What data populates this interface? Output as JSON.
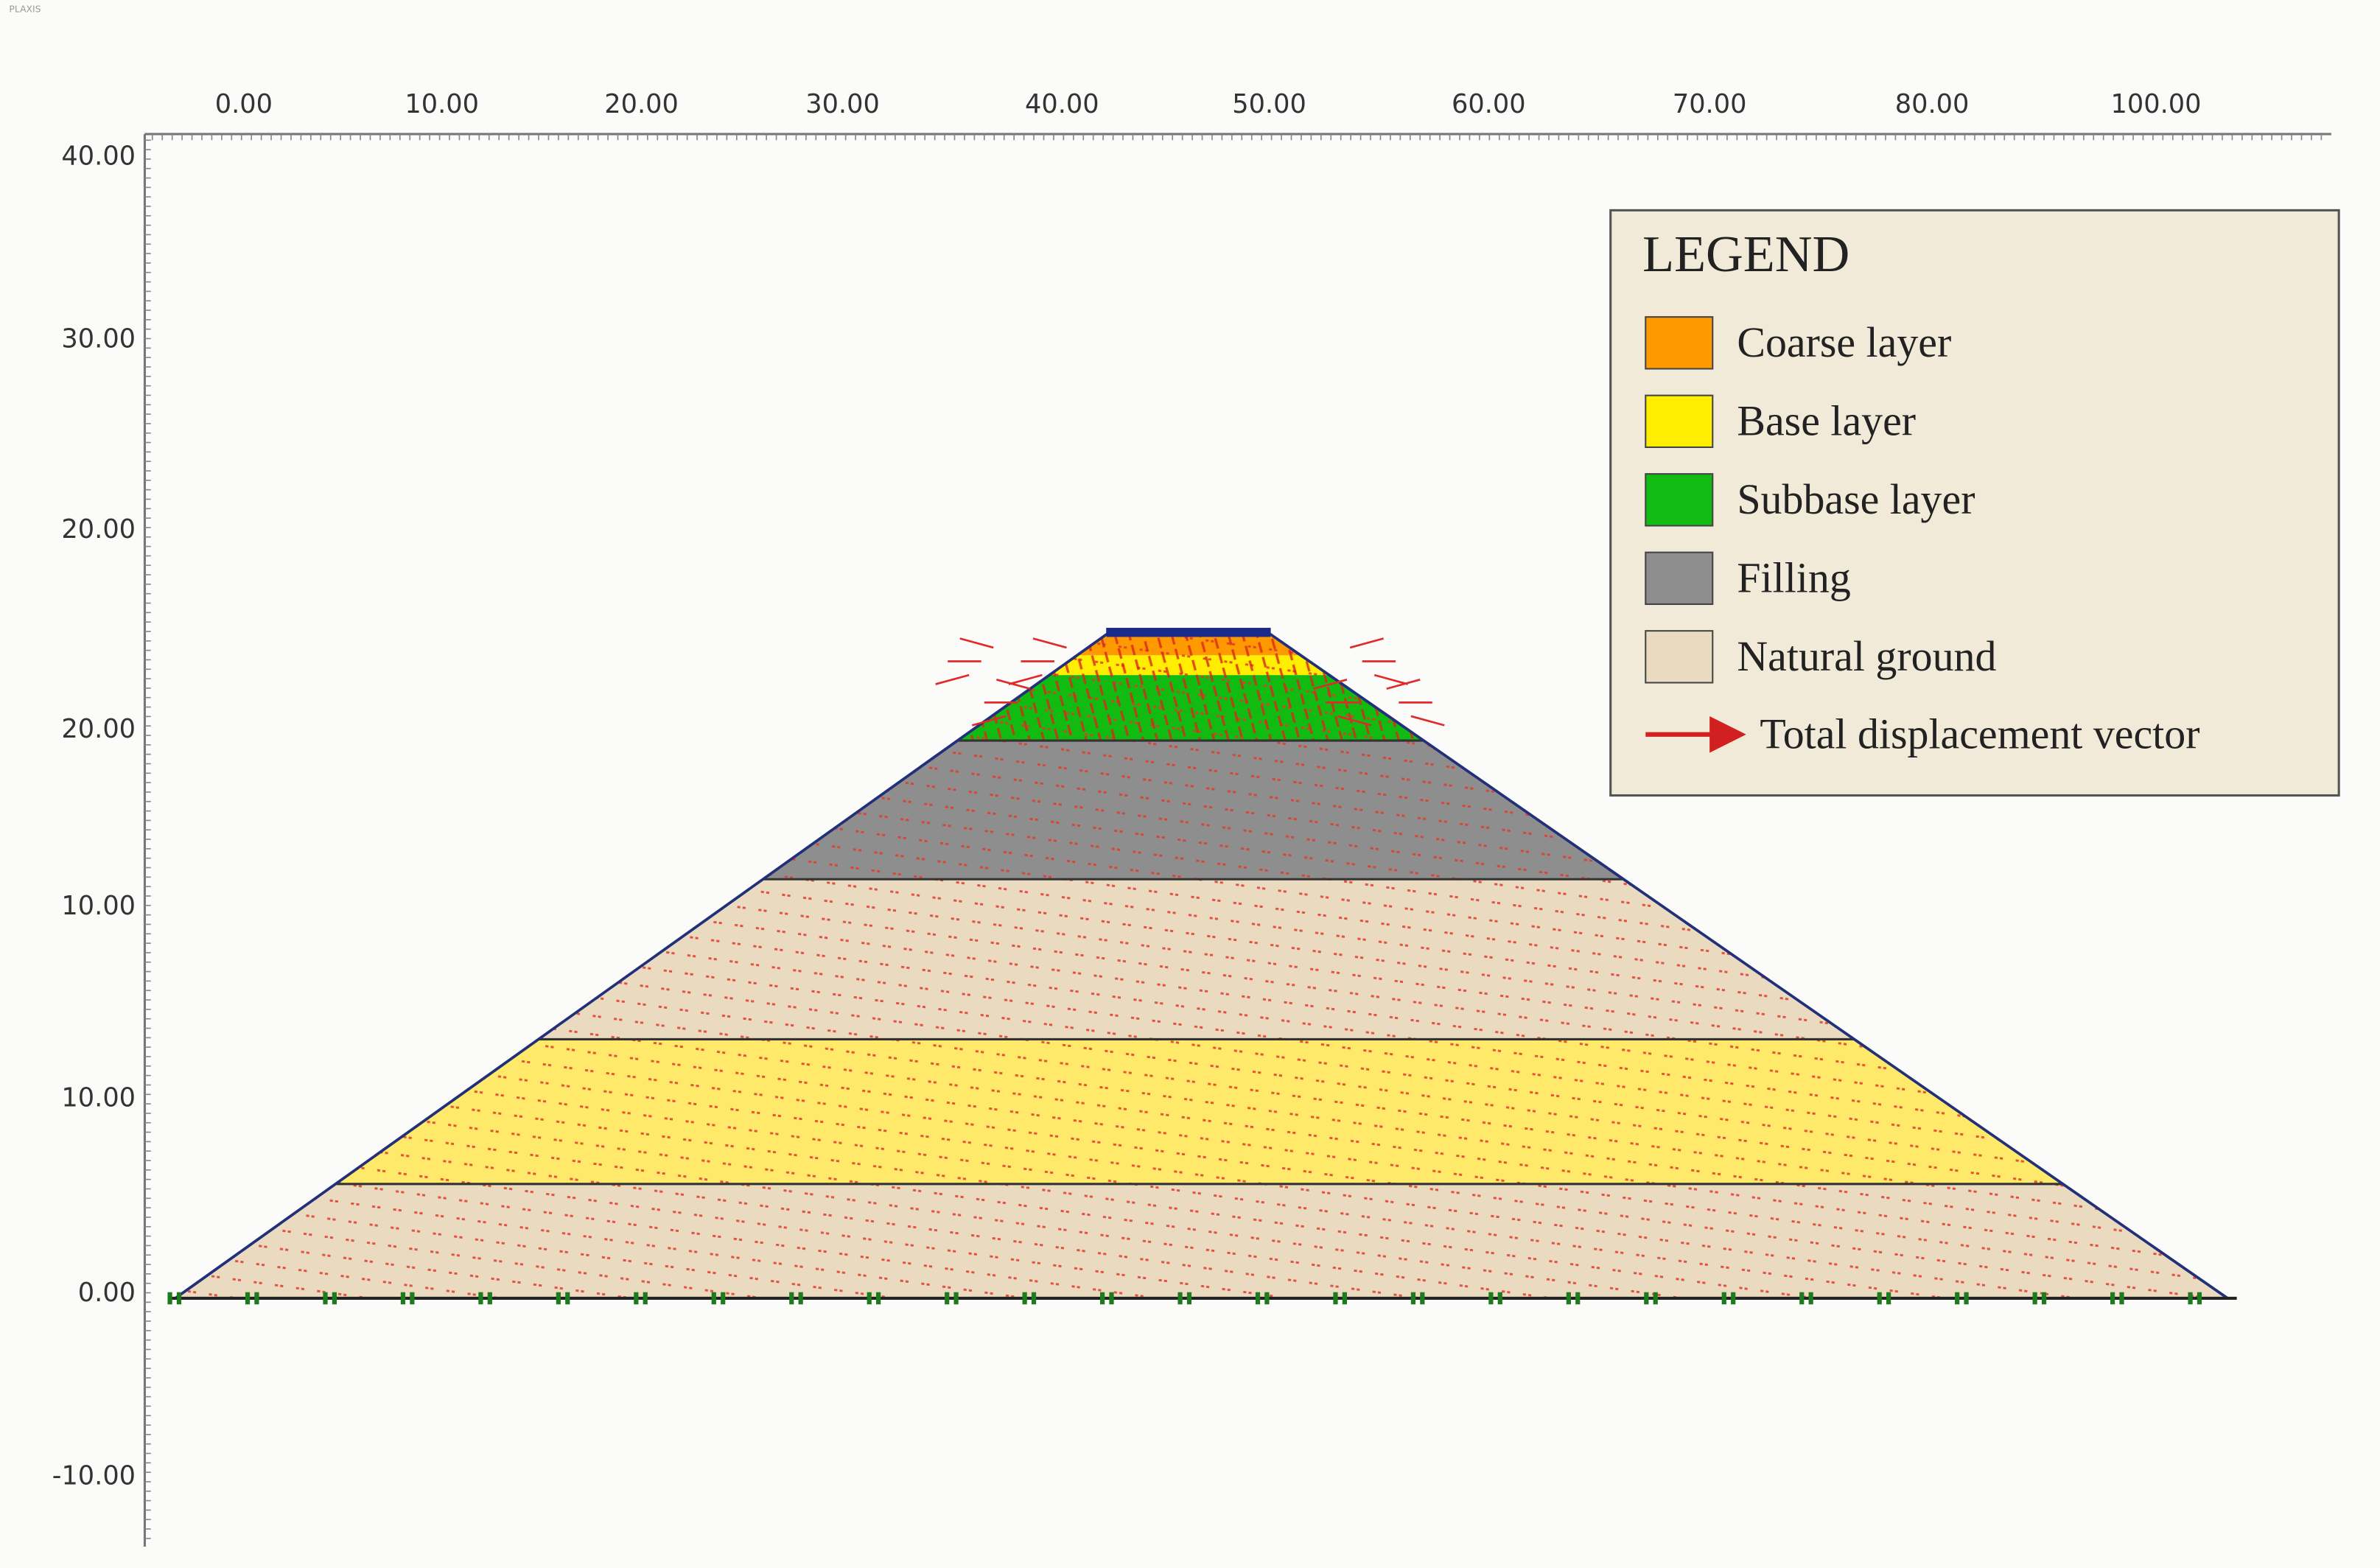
{
  "header": {
    "app": "PLAXIS"
  },
  "x_axis": {
    "labels": [
      "0.00",
      "10.00",
      "20.00",
      "30.00",
      "40.00",
      "50.00",
      "60.00",
      "70.00",
      "80.00",
      "100.00"
    ]
  },
  "y_axis": {
    "labels": [
      "40.00",
      "30.00",
      "20.00",
      "20.00",
      "10.00",
      "10.00",
      "0.00",
      "-10.00"
    ]
  },
  "legend": {
    "title": "LEGEND",
    "items": [
      {
        "label": "Coarse layer",
        "color": "#ff9900"
      },
      {
        "label": "Base layer",
        "color": "#ffee00"
      },
      {
        "label": "Subbase layer",
        "color": "#11bb11"
      },
      {
        "label": "Filling",
        "color": "#8e8e8e"
      },
      {
        "label": "Natural ground",
        "color": "#eadbc0"
      }
    ],
    "vector_label": "Total displacement vector"
  }
}
